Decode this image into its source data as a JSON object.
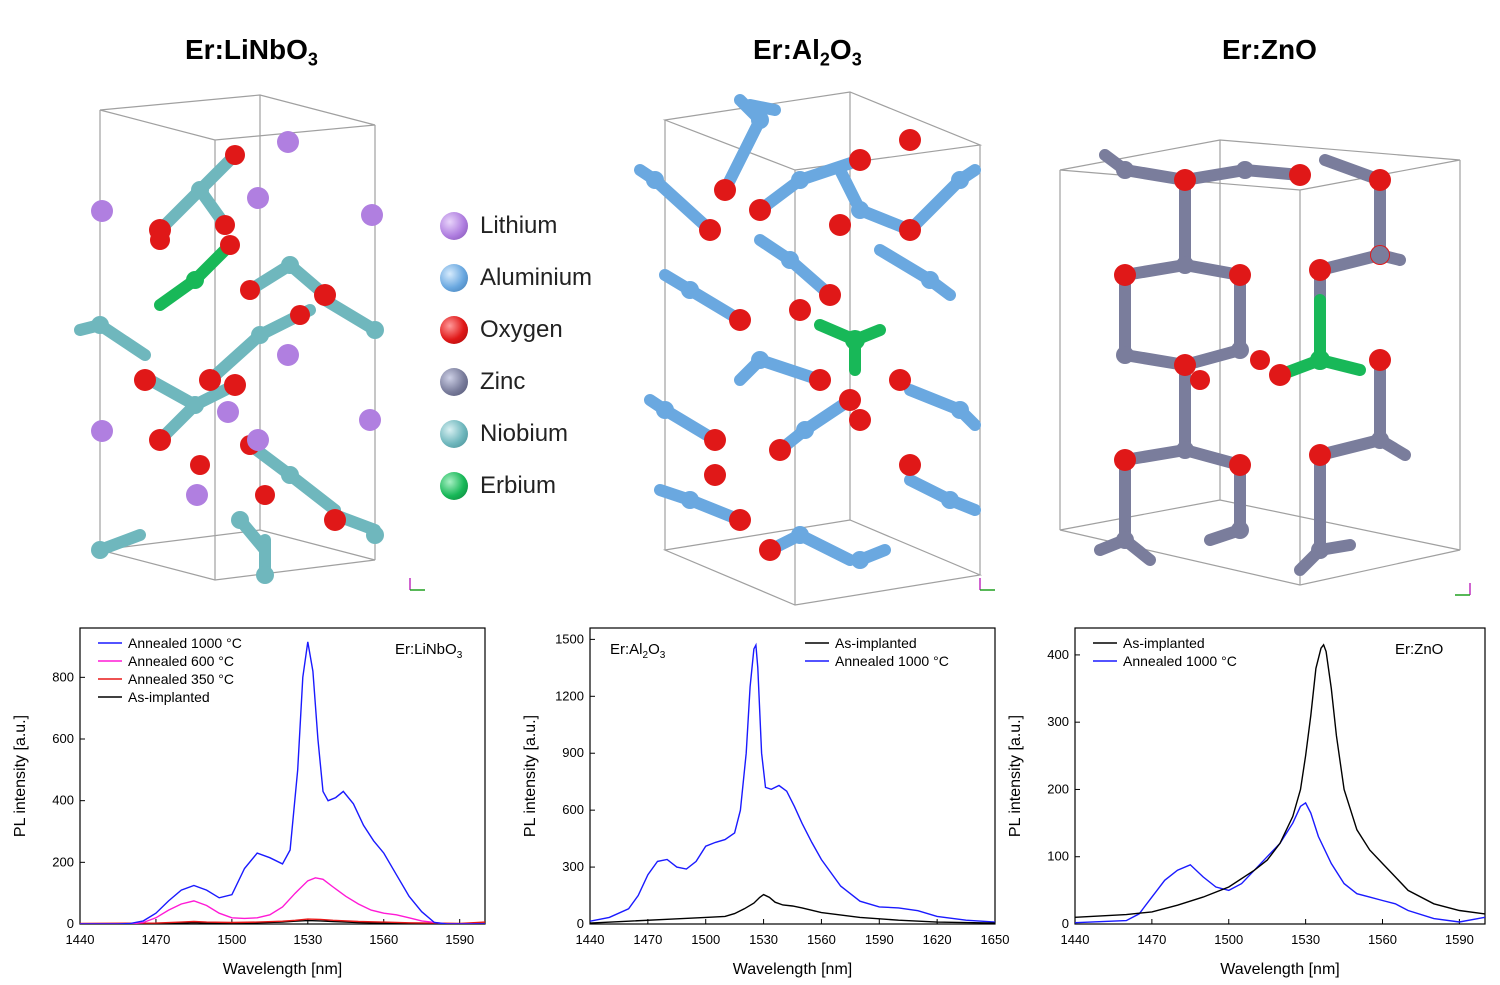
{
  "titles": [
    {
      "base": "Er:LiNbO",
      "sub": "3",
      "tail": ""
    },
    {
      "base": "Er:Al",
      "sub": "2",
      "mid": "O",
      "sub2": "3"
    },
    {
      "base": "Er:ZnO"
    }
  ],
  "legend": {
    "items": [
      {
        "label": "Lithium",
        "color": "#b07fe0"
      },
      {
        "label": "Aluminium",
        "color": "#6aa8e0"
      },
      {
        "label": "Oxygen",
        "color": "#e01818"
      },
      {
        "label": "Zinc",
        "color": "#7a7d9c"
      },
      {
        "label": "Niobium",
        "color": "#6fb7bd"
      },
      {
        "label": "Erbium",
        "color": "#18b858"
      }
    ]
  },
  "colors": {
    "lithium": "#b07fe0",
    "aluminium": "#6aa8e0",
    "oxygen": "#e01818",
    "zinc": "#7a7d9c",
    "niobium": "#6fb7bd",
    "erbium": "#18b858"
  },
  "chart_data": [
    {
      "type": "line",
      "annotation": "Er:LiNbO3",
      "xlabel": "Wavelength [nm]",
      "ylabel": "PL intensity [a.u.]",
      "xlim": [
        1440,
        1600
      ],
      "ylim": [
        0,
        960
      ],
      "xticks": [
        1440,
        1470,
        1500,
        1530,
        1560,
        1590
      ],
      "yticks": [
        0,
        200,
        400,
        600,
        800
      ],
      "series": [
        {
          "name": "Annealed 1000 °C",
          "color": "#1a1aff",
          "x": [
            1440,
            1455,
            1460,
            1465,
            1470,
            1475,
            1480,
            1485,
            1490,
            1495,
            1500,
            1505,
            1510,
            1515,
            1520,
            1523,
            1526,
            1528,
            1530,
            1532,
            1534,
            1536,
            1538,
            1541,
            1544,
            1548,
            1552,
            1556,
            1560,
            1565,
            1570,
            1575,
            1580,
            1585,
            1600
          ],
          "y": [
            0,
            0,
            2,
            10,
            35,
            75,
            110,
            125,
            110,
            85,
            95,
            180,
            230,
            215,
            195,
            240,
            500,
            800,
            915,
            820,
            600,
            430,
            400,
            410,
            430,
            390,
            320,
            270,
            230,
            160,
            90,
            40,
            5,
            0,
            0
          ]
        },
        {
          "name": "Annealed 600 °C",
          "color": "#ff1ad6",
          "x": [
            1440,
            1460,
            1465,
            1470,
            1475,
            1480,
            1485,
            1490,
            1495,
            1500,
            1505,
            1510,
            1515,
            1520,
            1525,
            1530,
            1533,
            1536,
            1540,
            1545,
            1550,
            1555,
            1560,
            1565,
            1570,
            1575,
            1585,
            1600
          ],
          "y": [
            0,
            0,
            5,
            20,
            45,
            65,
            75,
            60,
            35,
            20,
            18,
            20,
            30,
            55,
            100,
            140,
            150,
            145,
            120,
            90,
            65,
            45,
            35,
            30,
            20,
            10,
            0,
            0
          ]
        },
        {
          "name": "Annealed 350 °C",
          "color": "#e81818",
          "x": [
            1440,
            1470,
            1480,
            1485,
            1490,
            1500,
            1510,
            1520,
            1525,
            1530,
            1535,
            1540,
            1550,
            1560,
            1570,
            1580,
            1590,
            1600
          ],
          "y": [
            2,
            3,
            6,
            8,
            6,
            5,
            6,
            9,
            12,
            16,
            15,
            12,
            8,
            6,
            4,
            3,
            2,
            6
          ]
        },
        {
          "name": "As-implanted",
          "color": "#000000",
          "x": [
            1440,
            1470,
            1480,
            1485,
            1490,
            1500,
            1510,
            1520,
            1525,
            1530,
            1535,
            1540,
            1550,
            1560,
            1570,
            1580,
            1590,
            1600
          ],
          "y": [
            0,
            1,
            3,
            5,
            3,
            3,
            4,
            6,
            9,
            11,
            10,
            8,
            5,
            3,
            2,
            1,
            1,
            2
          ]
        }
      ]
    },
    {
      "type": "line",
      "annotation": "Er:Al2O3",
      "xlabel": "Wavelength [nm]",
      "ylabel": "PL intensity [a.u.]",
      "xlim": [
        1440,
        1650
      ],
      "ylim": [
        0,
        1560
      ],
      "xticks": [
        1440,
        1470,
        1500,
        1530,
        1560,
        1590,
        1620,
        1650
      ],
      "yticks": [
        0,
        300,
        600,
        900,
        1200,
        1500
      ],
      "series": [
        {
          "name": "As-implanted",
          "color": "#000000",
          "x": [
            1440,
            1460,
            1480,
            1500,
            1510,
            1515,
            1520,
            1525,
            1528,
            1530,
            1533,
            1536,
            1540,
            1545,
            1550,
            1560,
            1580,
            1600,
            1620,
            1650
          ],
          "y": [
            5,
            15,
            25,
            35,
            40,
            55,
            80,
            110,
            140,
            155,
            140,
            115,
            100,
            95,
            85,
            60,
            35,
            20,
            10,
            5
          ]
        },
        {
          "name": "Annealed 1000 °C",
          "color": "#1a1aff",
          "x": [
            1440,
            1450,
            1460,
            1465,
            1470,
            1475,
            1480,
            1485,
            1490,
            1495,
            1500,
            1505,
            1510,
            1515,
            1518,
            1521,
            1523,
            1525,
            1526,
            1527,
            1529,
            1531,
            1534,
            1538,
            1542,
            1546,
            1550,
            1555,
            1560,
            1570,
            1580,
            1590,
            1600,
            1610,
            1620,
            1635,
            1650
          ],
          "y": [
            15,
            35,
            80,
            150,
            260,
            330,
            340,
            300,
            290,
            330,
            410,
            430,
            445,
            480,
            600,
            900,
            1250,
            1450,
            1470,
            1350,
            900,
            720,
            710,
            730,
            700,
            620,
            530,
            430,
            340,
            200,
            120,
            90,
            85,
            70,
            40,
            20,
            10
          ]
        }
      ]
    },
    {
      "type": "line",
      "annotation": "Er:ZnO",
      "xlabel": "Wavelength [nm]",
      "ylabel": "PL intensity [a.u.]",
      "xlim": [
        1440,
        1600
      ],
      "ylim": [
        0,
        440
      ],
      "xticks": [
        1440,
        1470,
        1500,
        1530,
        1560,
        1590
      ],
      "yticks": [
        0,
        100,
        200,
        300,
        400
      ],
      "series": [
        {
          "name": "As-implanted",
          "color": "#000000",
          "x": [
            1440,
            1450,
            1460,
            1470,
            1480,
            1490,
            1500,
            1510,
            1515,
            1520,
            1525,
            1528,
            1530,
            1532,
            1534,
            1536,
            1537,
            1538,
            1540,
            1542,
            1545,
            1550,
            1555,
            1560,
            1565,
            1570,
            1580,
            1590,
            1600
          ],
          "y": [
            10,
            12,
            14,
            18,
            28,
            40,
            55,
            80,
            95,
            120,
            160,
            200,
            250,
            310,
            380,
            410,
            415,
            405,
            350,
            280,
            200,
            140,
            110,
            90,
            70,
            50,
            30,
            20,
            15
          ]
        },
        {
          "name": "Annealed 1000 °C",
          "color": "#1a1aff",
          "x": [
            1440,
            1460,
            1465,
            1470,
            1475,
            1480,
            1485,
            1490,
            1495,
            1500,
            1505,
            1510,
            1515,
            1520,
            1525,
            1528,
            1530,
            1532,
            1535,
            1540,
            1545,
            1550,
            1555,
            1560,
            1565,
            1570,
            1580,
            1590,
            1600
          ],
          "y": [
            2,
            5,
            15,
            40,
            65,
            80,
            88,
            70,
            55,
            50,
            60,
            80,
            100,
            120,
            150,
            175,
            180,
            165,
            130,
            90,
            60,
            45,
            40,
            35,
            30,
            20,
            8,
            3,
            10
          ]
        }
      ]
    }
  ]
}
